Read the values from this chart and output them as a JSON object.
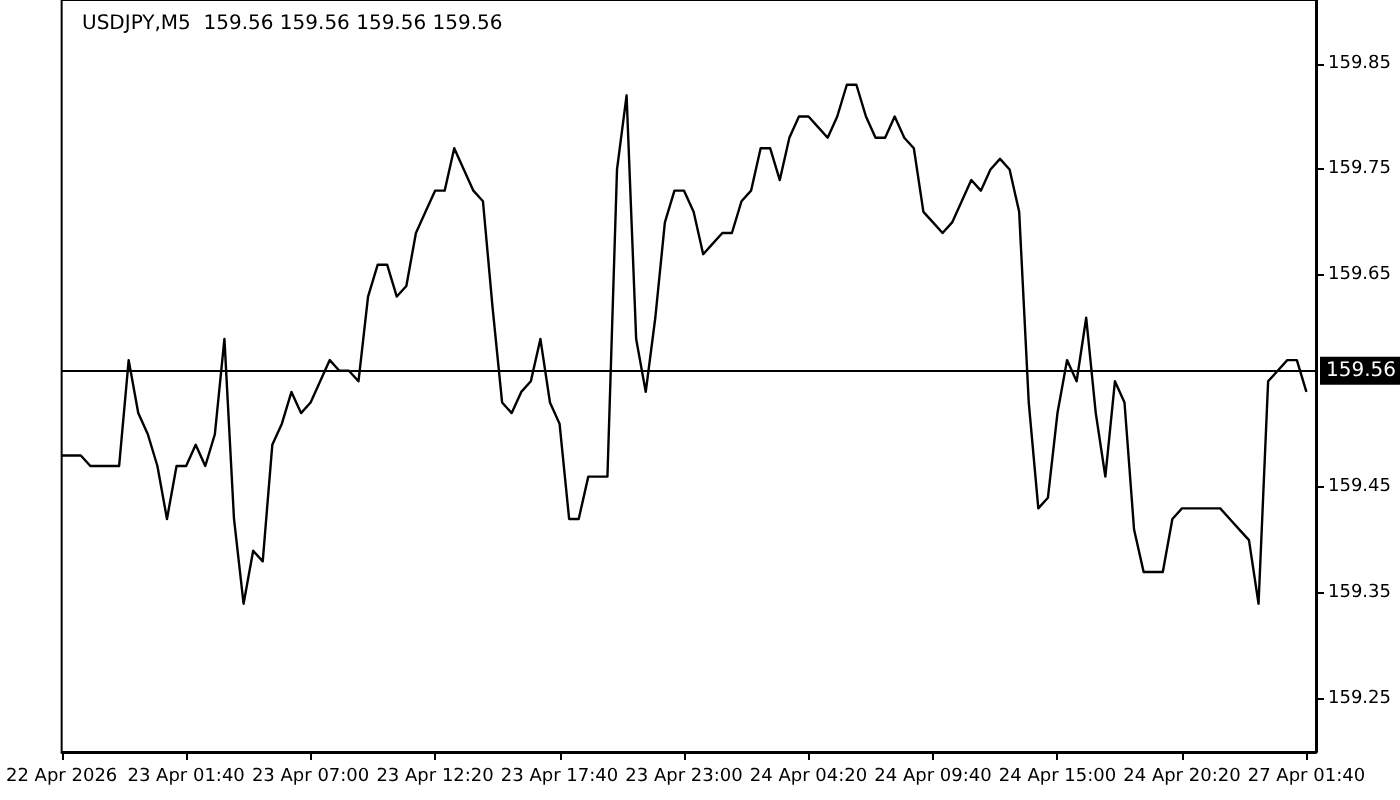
{
  "chart_data": {
    "type": "line",
    "title": "USDJPY,M5  159.56 159.56 159.56 159.56",
    "categories": [
      "22 Apr 2026",
      null,
      null,
      null,
      null,
      null,
      null,
      null,
      null,
      null,
      null,
      null,
      null,
      "23 Apr 01:40",
      null,
      null,
      null,
      null,
      null,
      null,
      null,
      null,
      null,
      null,
      null,
      null,
      "23 Apr 07:00",
      null,
      null,
      null,
      null,
      null,
      null,
      null,
      null,
      null,
      null,
      null,
      null,
      "23 Apr 12:20",
      null,
      null,
      null,
      null,
      null,
      null,
      null,
      null,
      null,
      null,
      null,
      null,
      "23 Apr 17:40",
      null,
      null,
      null,
      null,
      null,
      null,
      null,
      null,
      null,
      null,
      null,
      null,
      "23 Apr 23:00",
      null,
      null,
      null,
      null,
      null,
      null,
      null,
      null,
      null,
      null,
      null,
      null,
      "24 Apr 04:20",
      null,
      null,
      null,
      null,
      null,
      null,
      null,
      null,
      null,
      null,
      null,
      null,
      "24 Apr 09:40",
      null,
      null,
      null,
      null,
      null,
      null,
      null,
      null,
      null,
      null,
      null,
      null,
      "24 Apr 15:00",
      null,
      null,
      null,
      null,
      null,
      null,
      null,
      null,
      null,
      null,
      null,
      null,
      "24 Apr 20:20",
      null,
      null,
      null,
      null,
      null,
      null,
      null,
      null,
      null,
      null,
      null,
      null,
      "27 Apr 01:40",
      null
    ],
    "series": [
      {
        "color": "#000000",
        "values": [
          159.48,
          159.48,
          159.48,
          159.47,
          159.47,
          159.47,
          159.47,
          159.57,
          159.52,
          159.5,
          159.47,
          159.42,
          159.47,
          159.47,
          159.49,
          159.47,
          159.5,
          159.59,
          159.42,
          159.34,
          159.39,
          159.38,
          159.49,
          159.51,
          159.54,
          159.52,
          159.53,
          159.55,
          159.57,
          159.56,
          159.56,
          159.55,
          159.63,
          159.66,
          159.66,
          159.63,
          159.64,
          159.69,
          159.71,
          159.73,
          159.73,
          159.77,
          159.75,
          159.73,
          159.72,
          159.62,
          159.53,
          159.52,
          159.54,
          159.55,
          159.59,
          159.53,
          159.51,
          159.42,
          159.42,
          159.46,
          159.46,
          159.46,
          159.75,
          159.82,
          159.59,
          159.54,
          159.61,
          159.7,
          159.73,
          159.73,
          159.71,
          159.67,
          159.68,
          159.69,
          159.69,
          159.72,
          159.73,
          159.77,
          159.77,
          159.74,
          159.78,
          159.8,
          159.8,
          159.79,
          159.78,
          159.8,
          159.83,
          159.83,
          159.8,
          159.78,
          159.78,
          159.8,
          159.78,
          159.77,
          159.71,
          159.7,
          159.69,
          159.7,
          159.72,
          159.74,
          159.73,
          159.75,
          159.76,
          159.75,
          159.71,
          159.53,
          159.43,
          159.44,
          159.52,
          159.57,
          159.55,
          159.61,
          159.52,
          159.46,
          159.55,
          159.53,
          159.41,
          159.37,
          159.37,
          159.37,
          159.42,
          159.43,
          159.43,
          159.43,
          159.43,
          159.43,
          159.42,
          159.41,
          159.4,
          159.34,
          159.55,
          159.56,
          159.57,
          159.57,
          159.54,
          null
        ]
      }
    ],
    "ylim": [
      159.2,
      159.91
    ],
    "yticks": [
      159.25,
      159.35,
      159.45,
      159.65,
      159.75,
      159.85
    ],
    "ref_lines": [
      {
        "axis": "y",
        "value": 159.56,
        "label": "159.56",
        "color": "#000000"
      }
    ],
    "grid": false,
    "marker": "none",
    "line_style": "solid"
  }
}
